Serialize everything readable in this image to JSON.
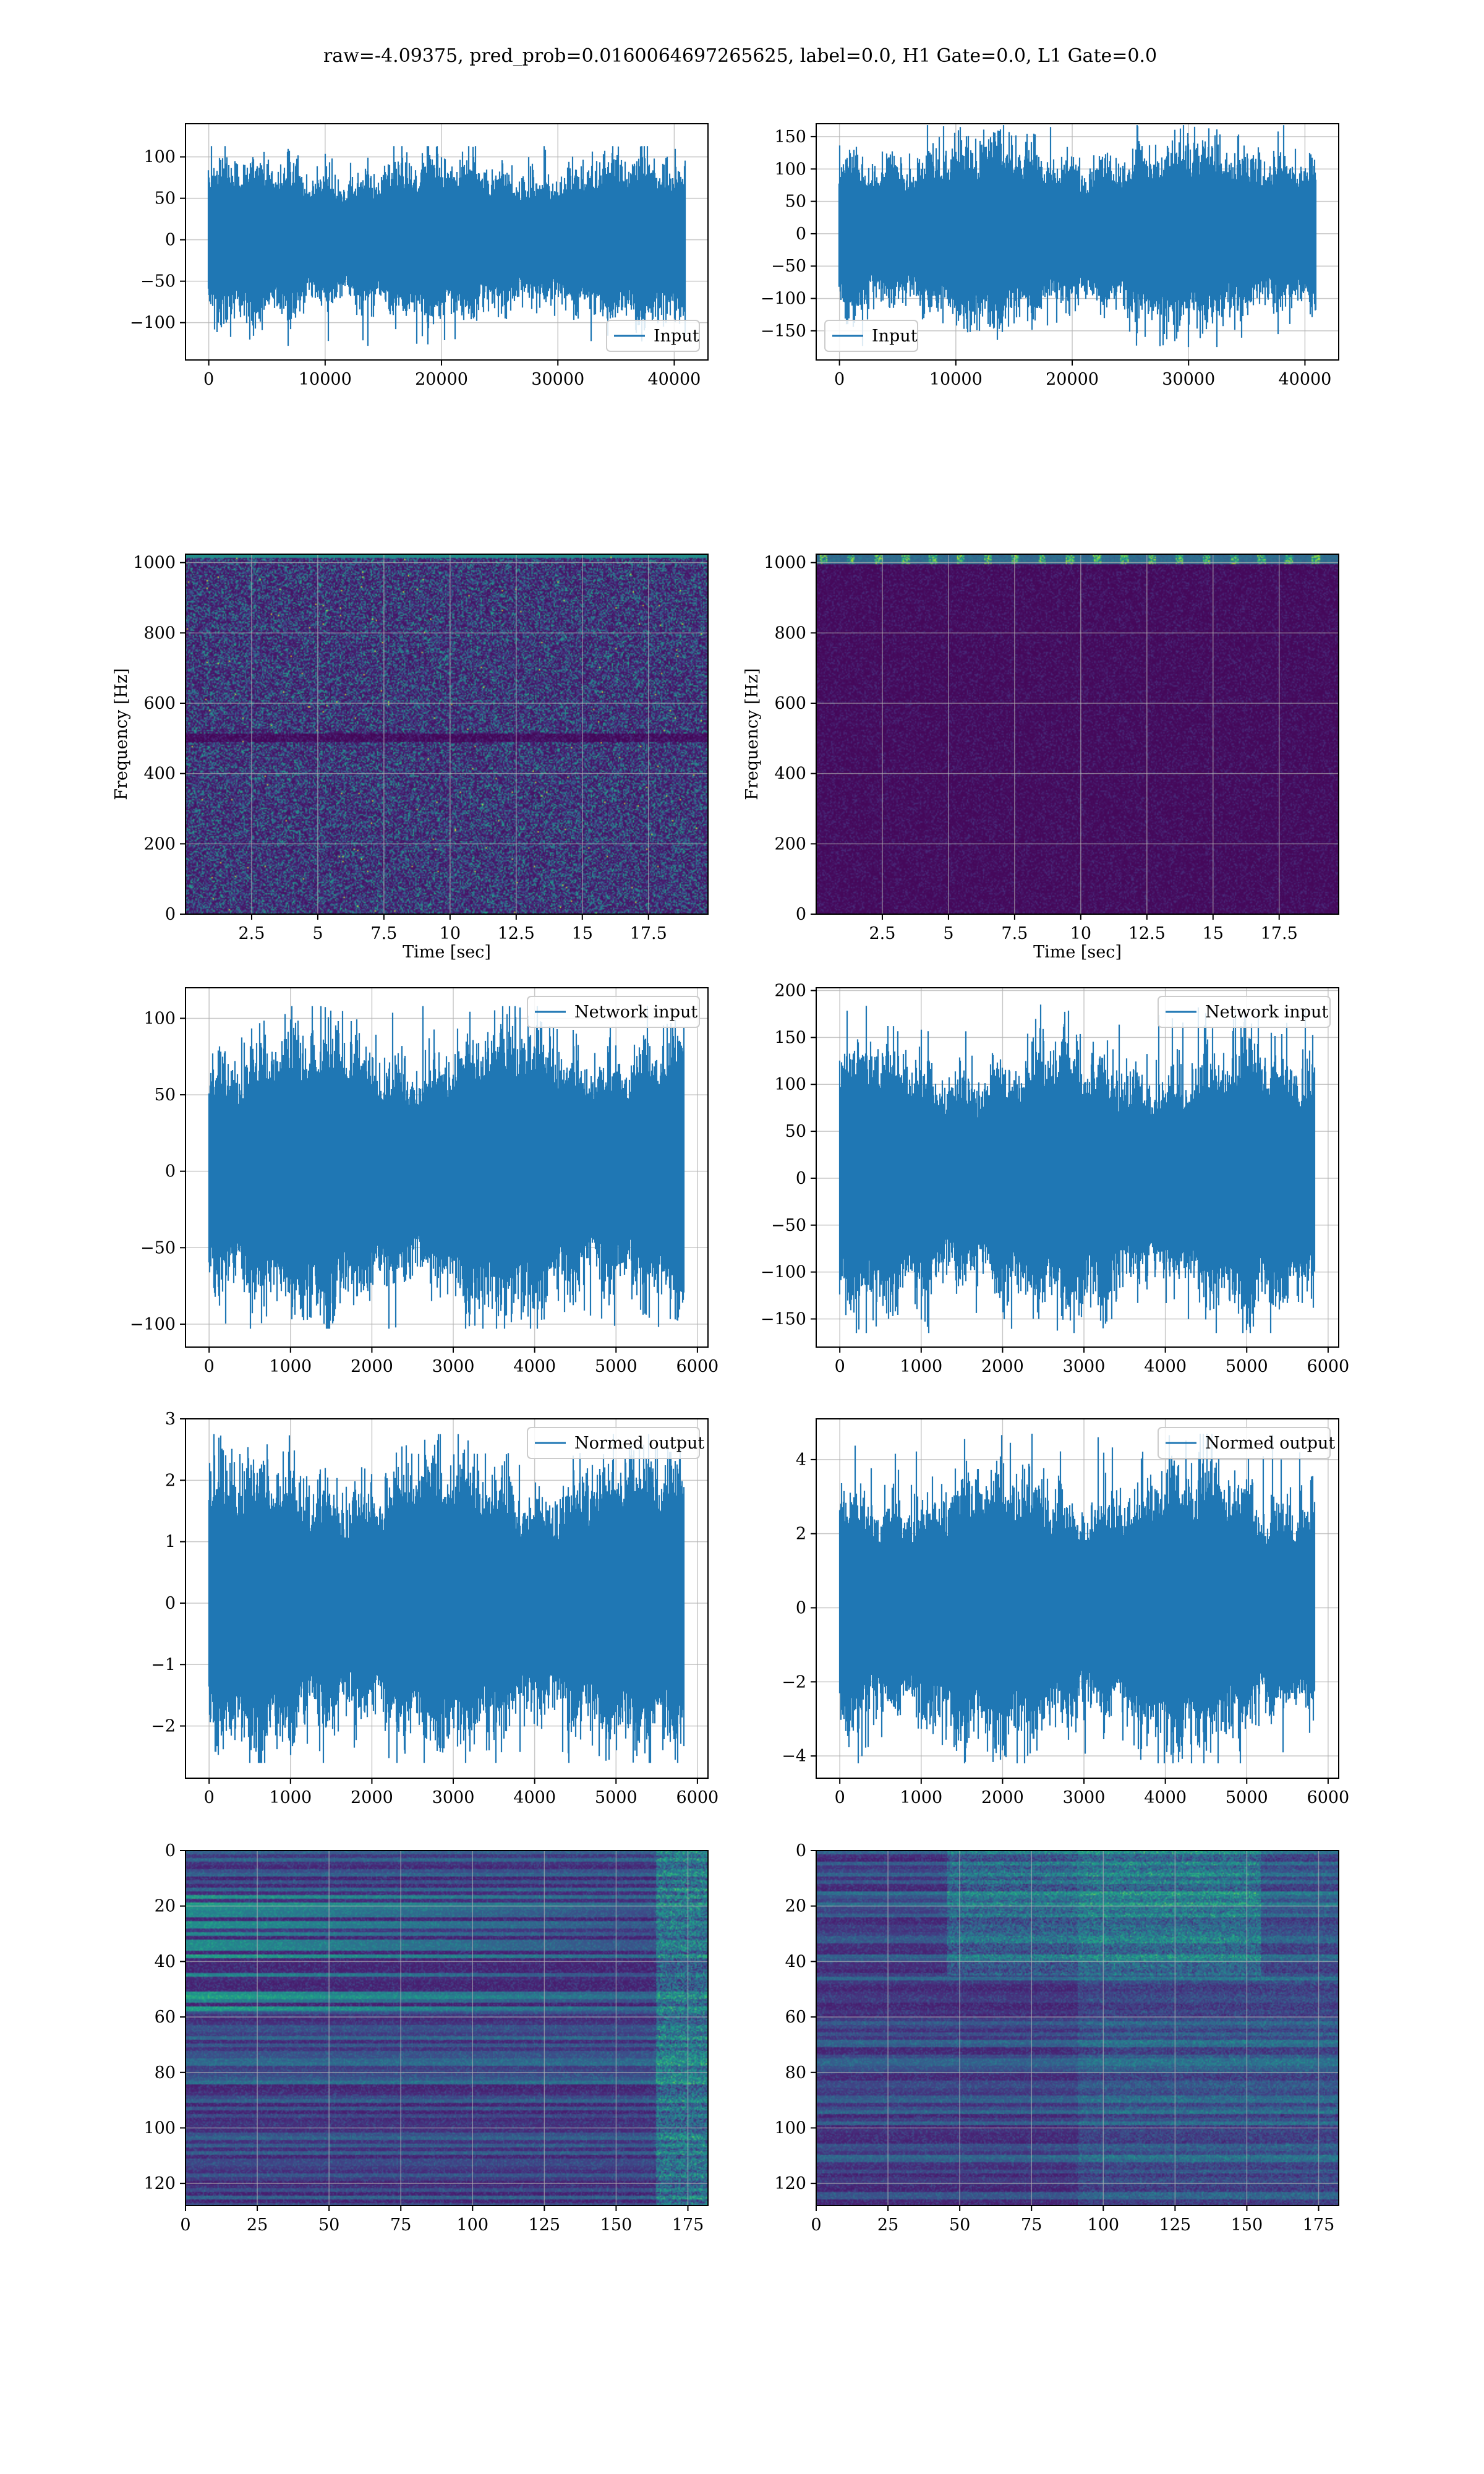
{
  "figure": {
    "title": "raw=-4.09375, pred_prob=0.0160064697265625, label=0.0, H1 Gate=0.0, L1 Gate=0.0",
    "colors": {
      "line": "#1f77b4",
      "grid": "#b0b0b0",
      "frame": "#000000"
    }
  },
  "chart_data": [
    {
      "id": "ts_input_h1",
      "type": "line",
      "row": 0,
      "col": 0,
      "series": [
        {
          "name": "Input",
          "n_points": 40960,
          "amplitude_std": 25,
          "approx_min": -128,
          "approx_max": 113
        }
      ],
      "xlabel": "",
      "ylabel": "",
      "xlim": [
        -2000,
        42900
      ],
      "ylim": [
        -145,
        140
      ],
      "xticks": [
        0,
        10000,
        20000,
        30000,
        40000
      ],
      "yticks": [
        -100,
        -50,
        0,
        50,
        100
      ],
      "legend": {
        "entries": [
          "Input"
        ],
        "position": "lower-right"
      },
      "grid": true
    },
    {
      "id": "ts_input_l1",
      "type": "line",
      "row": 0,
      "col": 1,
      "series": [
        {
          "name": "Input",
          "n_points": 40960,
          "amplitude_std": 36,
          "approx_min": -175,
          "approx_max": 168
        }
      ],
      "xlabel": "",
      "ylabel": "",
      "xlim": [
        -2000,
        42900
      ],
      "ylim": [
        -195,
        170
      ],
      "xticks": [
        0,
        10000,
        20000,
        30000,
        40000
      ],
      "yticks": [
        -150,
        -100,
        -50,
        0,
        50,
        100,
        150
      ],
      "legend": {
        "entries": [
          "Input"
        ],
        "position": "lower-left"
      },
      "grid": true
    },
    {
      "id": "spec_h1",
      "type": "heatmap",
      "row": 1,
      "col": 0,
      "description": "spectrogram, viridis colormap, mostly dark purple with scattered teal/green speckle; darker horizontal band near 500 Hz",
      "xlabel": "Time [sec]",
      "ylabel": "Frequency [Hz]",
      "xlim": [
        0,
        19.75
      ],
      "ylim": [
        0,
        1024
      ],
      "xticks": [
        2.5,
        5.0,
        7.5,
        10.0,
        12.5,
        15.0,
        17.5
      ],
      "yticks": [
        0,
        200,
        400,
        600,
        800,
        1000
      ],
      "colormap": "viridis",
      "grid": true
    },
    {
      "id": "spec_l1",
      "type": "heatmap",
      "row": 1,
      "col": 1,
      "description": "spectrogram, viridis colormap, almost uniformly dark purple with a bright speckled band at the top near 1000 Hz",
      "xlabel": "Time [sec]",
      "ylabel": "Frequency [Hz]",
      "xlim": [
        0,
        19.75
      ],
      "ylim": [
        0,
        1024
      ],
      "xticks": [
        2.5,
        5.0,
        7.5,
        10.0,
        12.5,
        15.0,
        17.5
      ],
      "yticks": [
        0,
        200,
        400,
        600,
        800,
        1000
      ],
      "colormap": "viridis",
      "grid": true
    },
    {
      "id": "net_input_h1",
      "type": "line",
      "row": 2,
      "col": 0,
      "series": [
        {
          "name": "Network input",
          "n_points": 5840,
          "amplitude_std": 24,
          "approx_min": -103,
          "approx_max": 108
        }
      ],
      "xlabel": "",
      "ylabel": "",
      "xlim": [
        -290,
        6130
      ],
      "ylim": [
        -115,
        120
      ],
      "xticks": [
        0,
        1000,
        2000,
        3000,
        4000,
        5000,
        6000
      ],
      "yticks": [
        -100,
        -50,
        0,
        50,
        100
      ],
      "legend": {
        "entries": [
          "Network input"
        ],
        "position": "upper-right"
      },
      "grid": true
    },
    {
      "id": "net_input_l1",
      "type": "line",
      "row": 2,
      "col": 1,
      "series": [
        {
          "name": "Network input",
          "n_points": 5840,
          "amplitude_std": 36,
          "approx_min": -165,
          "approx_max": 185
        }
      ],
      "xlabel": "",
      "ylabel": "",
      "xlim": [
        -290,
        6130
      ],
      "ylim": [
        -180,
        203
      ],
      "xticks": [
        0,
        1000,
        2000,
        3000,
        4000,
        5000,
        6000
      ],
      "yticks": [
        -150,
        -100,
        -50,
        0,
        50,
        100,
        150,
        200
      ],
      "legend": {
        "entries": [
          "Network input"
        ],
        "position": "upper-right"
      },
      "grid": true
    },
    {
      "id": "normed_h1",
      "type": "line",
      "row": 3,
      "col": 0,
      "series": [
        {
          "name": "Normed output",
          "n_points": 5840,
          "amplitude_std": 0.6,
          "approx_min": -2.6,
          "approx_max": 2.75
        }
      ],
      "xlabel": "",
      "ylabel": "",
      "xlim": [
        -290,
        6130
      ],
      "ylim": [
        -2.85,
        3.0
      ],
      "xticks": [
        0,
        1000,
        2000,
        3000,
        4000,
        5000,
        6000
      ],
      "yticks": [
        -2,
        -1,
        0,
        1,
        2,
        3
      ],
      "legend": {
        "entries": [
          "Normed output"
        ],
        "position": "upper-right"
      },
      "grid": true
    },
    {
      "id": "normed_l1",
      "type": "line",
      "row": 3,
      "col": 1,
      "series": [
        {
          "name": "Normed output",
          "n_points": 5840,
          "amplitude_std": 0.95,
          "approx_min": -4.2,
          "approx_max": 4.7
        }
      ],
      "xlabel": "",
      "ylabel": "",
      "xlim": [
        -290,
        6130
      ],
      "ylim": [
        -4.6,
        5.1
      ],
      "xticks": [
        0,
        1000,
        2000,
        3000,
        4000,
        5000,
        6000
      ],
      "yticks": [
        -4,
        -2,
        0,
        2,
        4
      ],
      "legend": {
        "entries": [
          "Normed output"
        ],
        "position": "upper-right"
      },
      "grid": true
    },
    {
      "id": "feat_h1",
      "type": "heatmap",
      "row": 4,
      "col": 0,
      "description": "feature map 128 rows x 182 columns, viridis colormap, horizontal streaks, brighter activity near the right edge",
      "xlabel": "",
      "ylabel": "",
      "xlim": [
        0,
        182
      ],
      "ylim": [
        128,
        0
      ],
      "xticks": [
        0,
        25,
        50,
        75,
        100,
        125,
        150,
        175
      ],
      "yticks": [
        0,
        20,
        40,
        60,
        80,
        100,
        120
      ],
      "colormap": "viridis",
      "grid": true
    },
    {
      "id": "feat_l1",
      "type": "heatmap",
      "row": 4,
      "col": 1,
      "description": "feature map 128 rows x 182 columns, viridis colormap, horizontal streaks with broader teal activity in the upper-middle region",
      "xlabel": "",
      "ylabel": "",
      "xlim": [
        0,
        182
      ],
      "ylim": [
        128,
        0
      ],
      "xticks": [
        0,
        25,
        50,
        75,
        100,
        125,
        150,
        175
      ],
      "yticks": [
        0,
        20,
        40,
        60,
        80,
        100,
        120
      ],
      "colormap": "viridis",
      "grid": true
    }
  ]
}
